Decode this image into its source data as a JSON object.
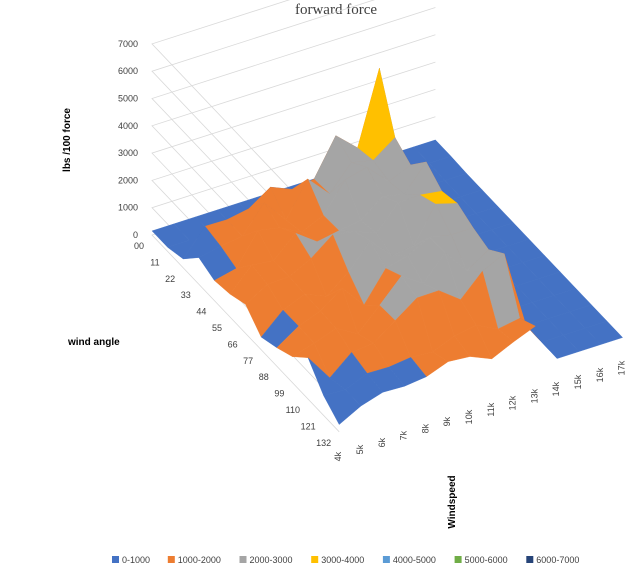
{
  "chart_data": {
    "type": "surface-3d",
    "title": "forward force",
    "zlabel": "lbs /100 force",
    "ylabel": "wind angle",
    "xlabel": "Windspeed",
    "zlim": [
      0,
      7000
    ],
    "z_ticks": [
      "0",
      "1000",
      "2000",
      "3000",
      "4000",
      "5000",
      "6000",
      "7000"
    ],
    "angle_ticks": [
      "00",
      "11",
      "22",
      "33",
      "44",
      "55",
      "66",
      "77",
      "88",
      "99",
      "110",
      "121",
      "132"
    ],
    "speed_ticks": [
      "4k",
      "5k",
      "6k",
      "7k",
      "8k",
      "9k",
      "10k",
      "11k",
      "12k",
      "13k",
      "14k",
      "15k",
      "16k",
      "17k"
    ],
    "grid": true,
    "legend_position": "bottom",
    "legend": [
      {
        "name": "0-1000",
        "color": "#4472c4"
      },
      {
        "name": "1000-2000",
        "color": "#ed7d31"
      },
      {
        "name": "2000-3000",
        "color": "#a5a5a5"
      },
      {
        "name": "3000-4000",
        "color": "#ffc000"
      },
      {
        "name": "4000-5000",
        "color": "#5b9bd5"
      },
      {
        "name": "5000-6000",
        "color": "#70ad47"
      },
      {
        "name": "6000-7000",
        "color": "#264478"
      }
    ]
  }
}
